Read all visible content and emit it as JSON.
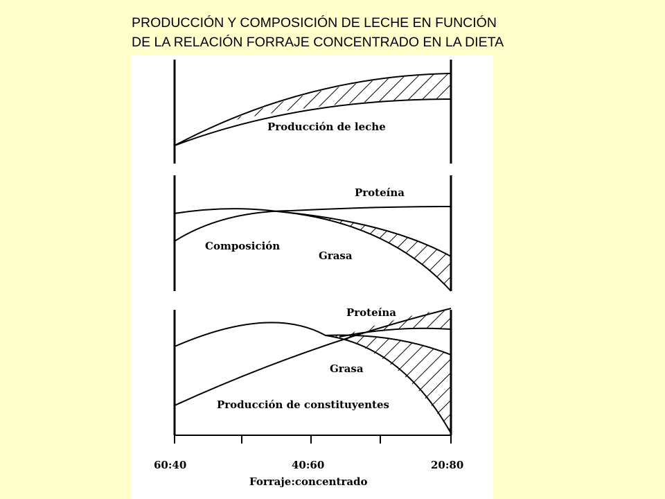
{
  "title": {
    "line1": "PRODUCCIÓN Y COMPOSICIÓN DE LECHE  EN FUNCIÓN",
    "line2": "DE LA RELACIÓN FORRAJE CONCENTRADO EN LA DIETA"
  },
  "panels": {
    "top": {
      "label": "Producción de leche"
    },
    "middle": {
      "label": "Composición",
      "protein": "Proteína",
      "fat": "Grasa"
    },
    "bottom": {
      "label": "Producción de constituyentes",
      "protein": "Proteína",
      "fat": "Grasa"
    }
  },
  "axis": {
    "ticks": [
      "60:40",
      "40:60",
      "20:80"
    ],
    "label": "Forraje:concentrado"
  },
  "colors": {
    "background": "#ffffcc",
    "panel": "#ffffff",
    "ink": "#000000"
  }
}
